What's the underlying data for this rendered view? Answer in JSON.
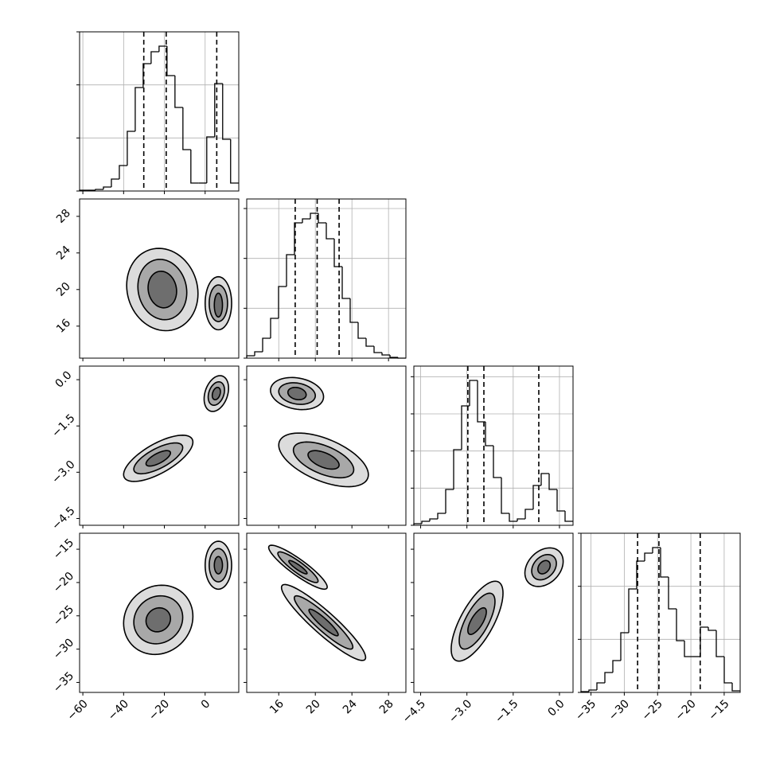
{
  "chart_data": {
    "type": "corner",
    "hist_color": "#000000",
    "contour_color": "#000000",
    "fill_colors": [
      "#dcdcdc",
      "#a8a8a8",
      "#6e6e6e"
    ],
    "grid": true,
    "params": [
      {
        "lim": [
          -61.6,
          16.5
        ],
        "ticks": [
          {
            "value": -60,
            "label": "−60"
          },
          {
            "value": -40,
            "label": "−40"
          },
          {
            "value": -20,
            "label": "−20"
          },
          0
        ]
      },
      {
        "lim": [
          12.5,
          29.9
        ],
        "ticks": [
          16,
          20,
          24,
          28
        ]
      },
      {
        "lim": [
          -4.72,
          0.44
        ],
        "ticks": [
          {
            "value": -4.5,
            "label": "−4.5"
          },
          {
            "value": -3.0,
            "label": "−3.0"
          },
          {
            "value": -1.5,
            "label": "−1.5"
          },
          {
            "value": 0.0,
            "label": "0.0"
          }
        ]
      },
      {
        "lim": [
          -36.5,
          -12.6
        ],
        "ticks": [
          {
            "value": -35,
            "label": "−35"
          },
          {
            "value": -30,
            "label": "−30"
          },
          {
            "value": -25,
            "label": "−25"
          },
          {
            "value": -20,
            "label": "−20"
          },
          {
            "value": -15,
            "label": "−15"
          }
        ]
      }
    ],
    "histograms": [
      {
        "bins": [
          -61.6,
          -57.7,
          -53.8,
          -49.9,
          -46.0,
          -42.1,
          -38.2,
          -34.3,
          -30.4,
          -26.5,
          -22.6,
          -18.7,
          -14.8,
          -10.9,
          -7.0,
          -3.1,
          0.8,
          4.7,
          8.6,
          12.5,
          16.4
        ],
        "counts": [
          15,
          15,
          30,
          75,
          225,
          480,
          1125,
          1950,
          2400,
          2625,
          2730,
          2175,
          1575,
          780,
          150,
          150,
          1020,
          2025,
          975,
          150
        ],
        "ylim": [
          0,
          3000
        ],
        "yticks": [
          0,
          1000,
          2000,
          3000
        ],
        "quantiles": [
          -30.1,
          -19.1,
          5.7
        ]
      },
      {
        "bins": [
          12.5,
          13.37,
          14.24,
          15.11,
          15.98,
          16.85,
          17.72,
          18.59,
          19.46,
          20.33,
          21.2,
          22.07,
          22.94,
          23.81,
          24.68,
          25.55,
          26.42,
          27.29,
          28.16,
          29.03,
          29.9
        ],
        "counts": [
          45,
          120,
          375,
          750,
          1350,
          1950,
          2550,
          2625,
          2730,
          2550,
          2250,
          1725,
          1125,
          675,
          375,
          225,
          105,
          60,
          15,
          0
        ],
        "ylim": [
          0,
          3000
        ],
        "yticks": [
          0,
          940,
          1880,
          2820
        ],
        "quantiles": [
          17.8,
          20.2,
          22.6
        ]
      },
      {
        "bins": [
          -4.72,
          -4.462,
          -4.204,
          -3.946,
          -3.688,
          -3.43,
          -3.172,
          -2.914,
          -2.656,
          -2.398,
          -2.14,
          -1.882,
          -1.624,
          -1.366,
          -1.108,
          -0.85,
          -0.592,
          -0.334,
          -0.076,
          0.182,
          0.44
        ],
        "counts": [
          30,
          75,
          120,
          225,
          675,
          1425,
          2250,
          2730,
          1950,
          1500,
          900,
          225,
          75,
          120,
          300,
          750,
          975,
          675,
          270,
          75
        ],
        "ylim": [
          0,
          3000
        ],
        "yticks": [
          0,
          700,
          1400,
          2100,
          2800
        ],
        "quantiles": [
          -2.97,
          -2.45,
          -0.67
        ]
      },
      {
        "bins": [
          -36.5,
          -35.305,
          -34.11,
          -32.915,
          -31.72,
          -30.525,
          -29.33,
          -28.135,
          -26.94,
          -25.745,
          -24.55,
          -23.355,
          -22.16,
          -20.965,
          -19.77,
          -18.575,
          -17.38,
          -16.185,
          -14.99,
          -13.795,
          -12.6
        ],
        "counts": [
          15,
          45,
          180,
          375,
          600,
          1125,
          1950,
          2475,
          2625,
          2730,
          2175,
          1575,
          975,
          675,
          675,
          1230,
          1170,
          675,
          180,
          30
        ],
        "ylim": [
          0,
          3000
        ],
        "yticks": [
          0,
          1000,
          2000,
          3000
        ],
        "quantiles": [
          -28.0,
          -24.8,
          -18.6
        ]
      }
    ],
    "pairs": [
      {
        "contours": [
          {
            "cx": -21,
            "cy": 20,
            "sx": 17.5,
            "sy": 4.5,
            "rho": -0.1
          },
          {
            "cx": -21,
            "cy": 20,
            "sx": 12,
            "sy": 3.3,
            "rho": -0.1
          },
          {
            "cx": -21,
            "cy": 20,
            "sx": 7,
            "sy": 2,
            "rho": -0.1
          },
          {
            "cx": 6.5,
            "cy": 18.5,
            "sx": 6.5,
            "sy": 2.9,
            "rho": 0
          },
          {
            "cx": 6.5,
            "cy": 18.5,
            "sx": 4.5,
            "sy": 2,
            "rho": 0
          },
          {
            "cx": 6.5,
            "cy": 18.3,
            "sx": 2,
            "sy": 1.3,
            "rho": 0
          }
        ]
      },
      {
        "contours": [
          {
            "cx": -23,
            "cy": -2.55,
            "sx": 17,
            "sy": 0.75,
            "rho": 0.7
          },
          {
            "cx": -23,
            "cy": -2.55,
            "sx": 12,
            "sy": 0.5,
            "rho": 0.7
          },
          {
            "cx": -23,
            "cy": -2.55,
            "sx": 6,
            "sy": 0.25,
            "rho": 0.7
          },
          {
            "cx": 5.5,
            "cy": -0.45,
            "sx": 6,
            "sy": 0.58,
            "rho": 0.3
          },
          {
            "cx": 5.5,
            "cy": -0.45,
            "sx": 4,
            "sy": 0.38,
            "rho": 0.3
          },
          {
            "cx": 5.5,
            "cy": -0.45,
            "sx": 2,
            "sy": 0.2,
            "rho": 0.3
          }
        ]
      },
      {
        "contours": [
          {
            "cx": 18,
            "cy": -0.45,
            "sx": 2.9,
            "sy": 0.52,
            "rho": -0.2
          },
          {
            "cx": 18,
            "cy": -0.45,
            "sx": 2,
            "sy": 0.35,
            "rho": -0.2
          },
          {
            "cx": 18,
            "cy": -0.45,
            "sx": 1,
            "sy": 0.2,
            "rho": -0.2
          },
          {
            "cx": 20.9,
            "cy": -2.6,
            "sx": 4.9,
            "sy": 0.87,
            "rho": -0.55
          },
          {
            "cx": 20.9,
            "cy": -2.6,
            "sx": 3.3,
            "sy": 0.58,
            "rho": -0.55
          },
          {
            "cx": 20.9,
            "cy": -2.6,
            "sx": 1.7,
            "sy": 0.3,
            "rho": -0.55
          }
        ]
      },
      {
        "contours": [
          {
            "cx": -23,
            "cy": -25.6,
            "sx": 17,
            "sy": 5.2,
            "rho": 0.1
          },
          {
            "cx": -23,
            "cy": -25.6,
            "sx": 12,
            "sy": 3.6,
            "rho": 0.1
          },
          {
            "cx": -23,
            "cy": -25.6,
            "sx": 6,
            "sy": 1.8,
            "rho": 0.1
          },
          {
            "cx": 6.5,
            "cy": -17.4,
            "sx": 6.5,
            "sy": 3.6,
            "rho": 0
          },
          {
            "cx": 6.5,
            "cy": -17.4,
            "sx": 4.5,
            "sy": 2.5,
            "rho": 0
          },
          {
            "cx": 6.5,
            "cy": -17.4,
            "sx": 2,
            "sy": 1.3,
            "rho": 0
          }
        ]
      },
      {
        "contours": [
          {
            "cx": 18.1,
            "cy": -17.7,
            "sx": 3.2,
            "sy": 3.3,
            "rho": -0.9
          },
          {
            "cx": 18.1,
            "cy": -17.7,
            "sx": 2.2,
            "sy": 2.3,
            "rho": -0.9
          },
          {
            "cx": 18.1,
            "cy": -17.7,
            "sx": 1,
            "sy": 1,
            "rho": -0.9
          },
          {
            "cx": 20.9,
            "cy": -26,
            "sx": 4.6,
            "sy": 5.7,
            "rho": -0.92
          },
          {
            "cx": 20.9,
            "cy": -26,
            "sx": 3.2,
            "sy": 4,
            "rho": -0.92
          },
          {
            "cx": 20.9,
            "cy": -26,
            "sx": 1.6,
            "sy": 2,
            "rho": -0.92
          }
        ]
      },
      {
        "contours": [
          {
            "cx": -2.67,
            "cy": -25.8,
            "sx": 0.84,
            "sy": 6,
            "rho": 0.7
          },
          {
            "cx": -2.67,
            "cy": -25.8,
            "sx": 0.58,
            "sy": 4.2,
            "rho": 0.7
          },
          {
            "cx": -2.67,
            "cy": -25.8,
            "sx": 0.3,
            "sy": 2,
            "rho": 0.7
          },
          {
            "cx": -0.5,
            "cy": -17.7,
            "sx": 0.62,
            "sy": 2.9,
            "rho": 0.3
          },
          {
            "cx": -0.5,
            "cy": -17.7,
            "sx": 0.4,
            "sy": 1.9,
            "rho": 0.3
          },
          {
            "cx": -0.5,
            "cy": -17.7,
            "sx": 0.2,
            "sy": 1,
            "rho": 0.3
          }
        ]
      }
    ]
  }
}
